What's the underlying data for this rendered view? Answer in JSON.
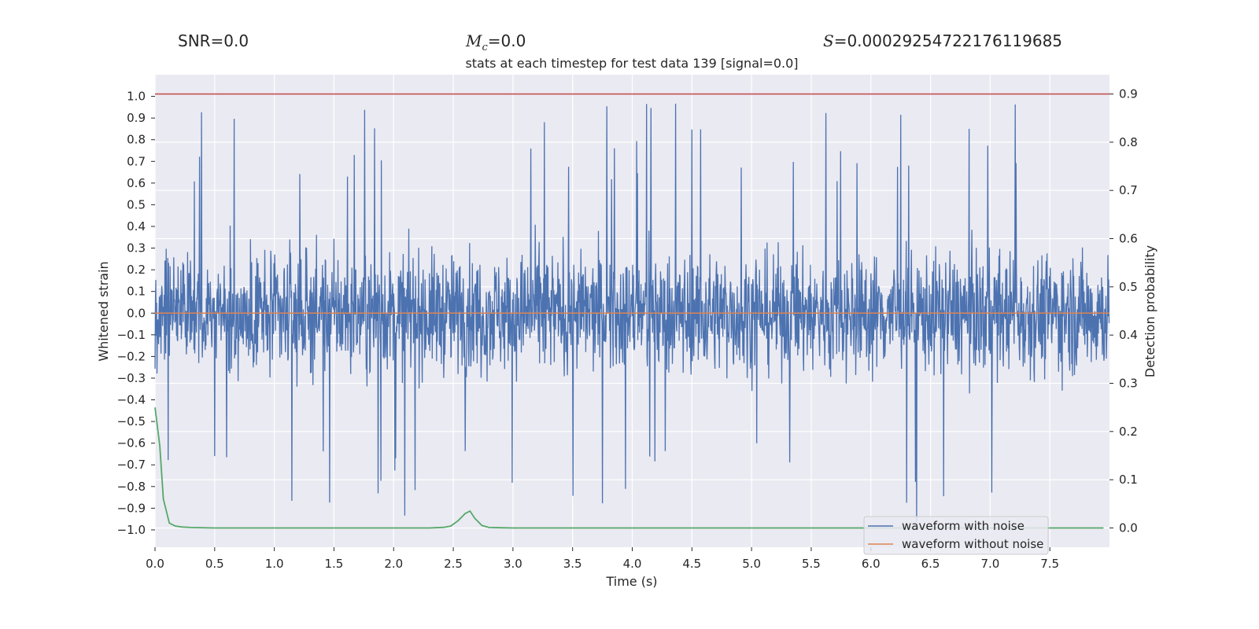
{
  "stats": {
    "snr_label": "SNR=0.0",
    "mc_symbol": "M",
    "mc_sub": "c",
    "mc_value": "=0.0",
    "s_symbol": "S",
    "s_value": "=0.00029254722176119685"
  },
  "chart_data": {
    "type": "line",
    "title": "stats at each timestep for test data 139 [signal=0.0]",
    "xlabel": "Time (s)",
    "ylabel": "Whitened strain",
    "y2label": "Detection probability",
    "xlim": [
      0,
      8.0
    ],
    "ylim": [
      -1.08,
      1.1
    ],
    "y2lim": [
      -0.04,
      0.94
    ],
    "x_ticks": [
      "0.0",
      "0.5",
      "1.0",
      "1.5",
      "2.0",
      "2.5",
      "3.0",
      "3.5",
      "4.0",
      "4.5",
      "5.0",
      "5.5",
      "6.0",
      "6.5",
      "7.0",
      "7.5"
    ],
    "y_ticks": [
      "1.0",
      "0.9",
      "0.8",
      "0.7",
      "0.6",
      "0.5",
      "0.4",
      "0.3",
      "0.2",
      "0.1",
      "0.0",
      "−0.1",
      "−0.2",
      "−0.3",
      "−0.4",
      "−0.5",
      "−0.6",
      "−0.7",
      "−0.8",
      "−0.9",
      "−1.0"
    ],
    "y2_ticks": [
      "0.9",
      "0.8",
      "0.7",
      "0.6",
      "0.5",
      "0.4",
      "0.3",
      "0.2",
      "0.1",
      "0.0"
    ],
    "threshold": {
      "value": 0.9,
      "axis": "right",
      "color": "#c44e52"
    },
    "series": [
      {
        "name": "waveform with noise",
        "color": "#4c72b0",
        "axis": "left",
        "description": "dense noise spanning roughly -1 to 1"
      },
      {
        "name": "waveform without noise",
        "color": "#dd8452",
        "axis": "left",
        "x": [
          0,
          8.0
        ],
        "y": [
          0,
          0
        ]
      },
      {
        "name": "detection probability",
        "color": "#55a868",
        "axis": "right",
        "x": [
          0.0,
          0.04,
          0.07,
          0.12,
          0.17,
          0.22,
          0.3,
          0.5,
          1.0,
          2.0,
          2.3,
          2.42,
          2.48,
          2.54,
          2.6,
          2.64,
          2.68,
          2.74,
          2.8,
          3.0,
          4.0,
          5.0,
          6.0,
          7.0,
          7.95
        ],
        "y": [
          0.25,
          0.17,
          0.06,
          0.01,
          0.004,
          0.002,
          0.001,
          0.0,
          0.0,
          0.0,
          0.0,
          0.0012,
          0.004,
          0.015,
          0.03,
          0.035,
          0.02,
          0.005,
          0.001,
          0.0,
          0.0,
          0.0,
          0.0,
          0.0,
          0.0
        ]
      }
    ],
    "legend": {
      "position": "lower-right",
      "entries": [
        "waveform with noise",
        "waveform without noise"
      ]
    },
    "grid": true
  }
}
